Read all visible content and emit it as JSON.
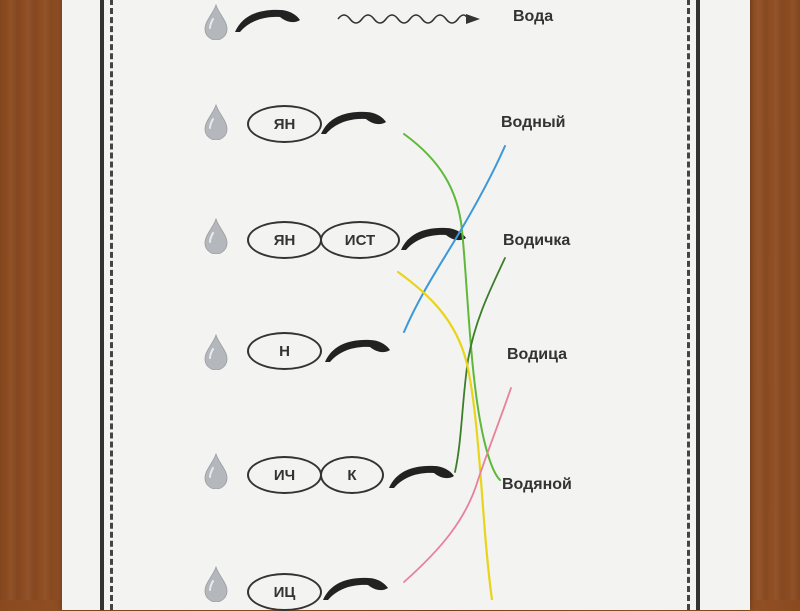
{
  "worksheet": {
    "first_row_word": "Вода",
    "suffix_rows": [
      {
        "suffixes": [
          "ЯН"
        ]
      },
      {
        "suffixes": [
          "ЯН",
          "ИСТ"
        ]
      },
      {
        "suffixes": [
          "Н"
        ]
      },
      {
        "suffixes": [
          "ИЧ",
          "К"
        ]
      },
      {
        "suffixes": [
          "ИЦ"
        ]
      }
    ],
    "words": [
      "Водный",
      "Водичка",
      "Водица",
      "Водяной"
    ],
    "line_colors": {
      "green": "#5fb83a",
      "blue": "#3c98d8",
      "dark_green": "#3d7d2c",
      "yellow": "#e9d41a",
      "pink": "#e8819a"
    }
  }
}
